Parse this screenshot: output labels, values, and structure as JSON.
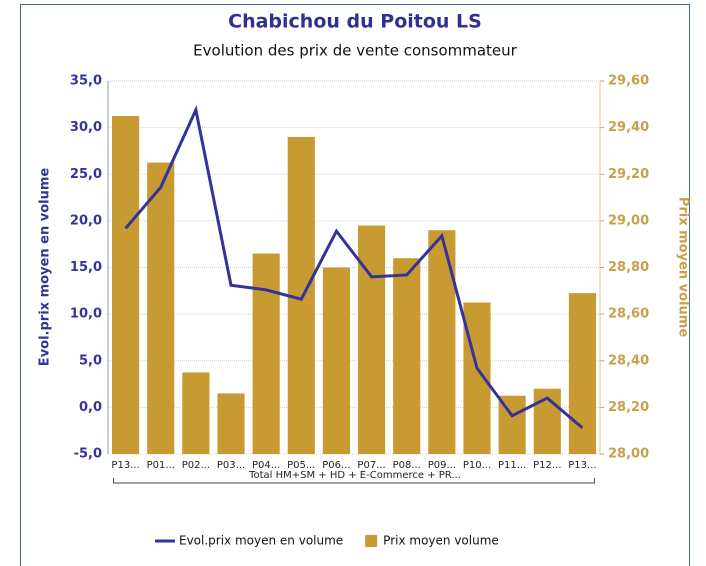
{
  "chart_data": {
    "type": "bar",
    "title": "Chabichou du Poitou LS",
    "subtitle": "Evolution des prix de vente consommateur",
    "y_label": "Evol.prix moyen en volume",
    "y2_label": "Prix moyen volume",
    "group_label": "Total HM+SM + HD + E-Commerce + PR...",
    "categories": [
      "P13...",
      "P01...",
      "P02...",
      "P03...",
      "P04...",
      "P05...",
      "P06...",
      "P07...",
      "P08...",
      "P09...",
      "P10...",
      "P11...",
      "P12...",
      "P13..."
    ],
    "series": [
      {
        "name": "Evol.prix moyen en volume",
        "type": "line",
        "color": "#333399",
        "values": [
          19.2,
          23.6,
          31.9,
          13.1,
          12.6,
          11.6,
          18.9,
          14.0,
          14.2,
          18.4,
          4.2,
          -0.9,
          1.0,
          -2.2
        ]
      },
      {
        "name": "Prix moyen volume",
        "type": "bar",
        "axis": "y2",
        "color": "#c89b32",
        "values": [
          29.45,
          29.25,
          28.35,
          28.26,
          28.86,
          29.36,
          28.8,
          28.98,
          28.84,
          28.96,
          28.65,
          28.25,
          28.28,
          28.69
        ]
      }
    ],
    "ylim": [
      -5,
      35
    ],
    "yticks": [
      {
        "value": -5,
        "label": "-5,0"
      },
      {
        "value": 0,
        "label": "0,0"
      },
      {
        "value": 5,
        "label": "5,0"
      },
      {
        "value": 10,
        "label": "10,0"
      },
      {
        "value": 15,
        "label": "15,0"
      },
      {
        "value": 20,
        "label": "20,0"
      },
      {
        "value": 25,
        "label": "25,0"
      },
      {
        "value": 30,
        "label": "30,0"
      },
      {
        "value": 35,
        "label": "35,0"
      }
    ],
    "y2lim": [
      28,
      29.6
    ],
    "y2ticks": [
      {
        "value": 28,
        "label": "28,00"
      },
      {
        "value": 28.2,
        "label": "28,20"
      },
      {
        "value": 28.4,
        "label": "28,40"
      },
      {
        "value": 28.6,
        "label": "28,60"
      },
      {
        "value": 28.8,
        "label": "28,80"
      },
      {
        "value": 29,
        "label": "29,00"
      },
      {
        "value": 29.2,
        "label": "29,20"
      },
      {
        "value": 29.4,
        "label": "29,40"
      },
      {
        "value": 29.6,
        "label": "29,60"
      }
    ],
    "grid": true
  }
}
